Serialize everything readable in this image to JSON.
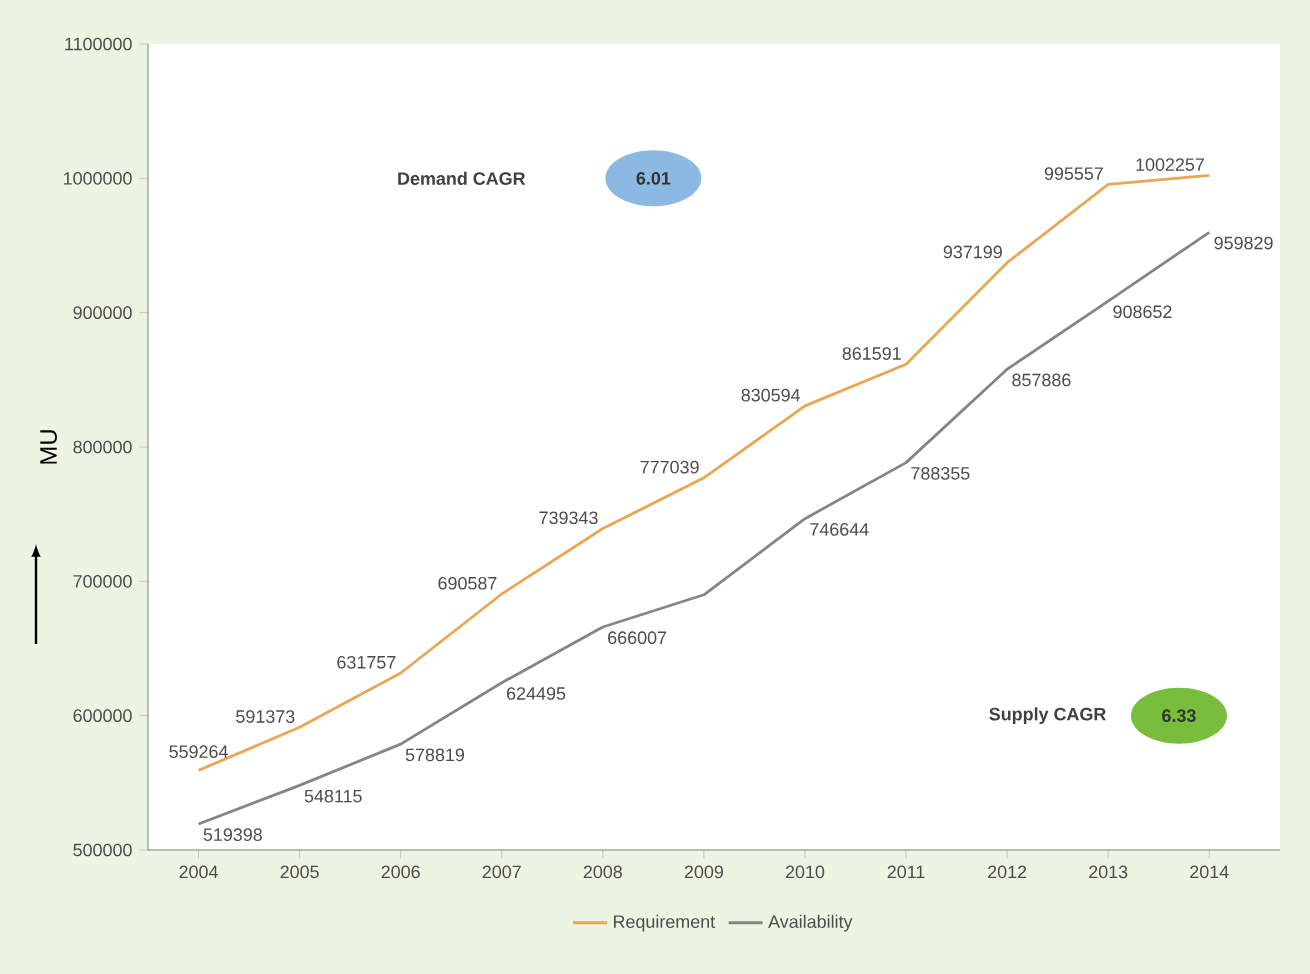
{
  "chart_data": {
    "type": "line",
    "ylabel": "MU",
    "categories": [
      "2004",
      "2005",
      "2006",
      "2007",
      "2008",
      "2009",
      "2010",
      "2011",
      "2012",
      "2013",
      "2014"
    ],
    "series": [
      {
        "name": "Requirement",
        "color": "#e8a657",
        "values": [
          559264,
          591373,
          631757,
          690587,
          739343,
          777039,
          830594,
          861591,
          937199,
          995557,
          1002257
        ],
        "value_labels": [
          "559264",
          "591373",
          "631757",
          "690587",
          "739343",
          "777039",
          "830594",
          "861591",
          "937199",
          "995557",
          "1002257"
        ]
      },
      {
        "name": "Availability",
        "color": "#858585",
        "values": [
          519398,
          548115,
          578819,
          624495,
          666007,
          690000,
          746644,
          788355,
          857886,
          908652,
          959829
        ],
        "value_labels": [
          "519398",
          "548115",
          "578819",
          "624495",
          "666007",
          null,
          "746644",
          "788355",
          "857886",
          "908652",
          "959829"
        ]
      }
    ],
    "ylim": [
      500000,
      1100000
    ],
    "yticks": [
      500000,
      600000,
      700000,
      800000,
      900000,
      1000000,
      1100000
    ],
    "annotations": [
      "Demand CAGR",
      "6.01",
      "Supply CAGR",
      "6.33"
    ],
    "legend": "bottom",
    "grid": false,
    "marker": "none",
    "line_style": "solid"
  }
}
